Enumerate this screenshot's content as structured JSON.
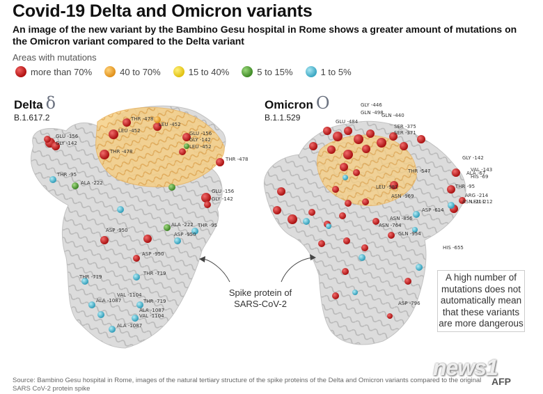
{
  "header": {
    "title": "Covid-19 Delta and Omicron variants",
    "subtitle": "An image of the new variant by the Bambino Gesu hospital in Rome shows a greater amount of mutations on the Omicron variant compared to the Delta variant"
  },
  "legend": {
    "title": "Areas with mutations",
    "items": [
      {
        "label": "more than 70%",
        "color": "#c81e1e"
      },
      {
        "label": "40 to 70%",
        "color": "#f0a81e"
      },
      {
        "label": "15 to 40%",
        "color": "#f2d21c"
      },
      {
        "label": "5 to 15%",
        "color": "#5aa83c"
      },
      {
        "label": "1 to 5%",
        "color": "#5bc0d8"
      }
    ]
  },
  "delta": {
    "name": "Delta",
    "symbol": "δ",
    "lineage": "B.1.617.2",
    "residues": [
      "THR -478",
      "LEU -452",
      "LEU -452",
      "GLU -156",
      "GLY -142",
      "GLU -156",
      "GLY -142",
      "LEU -452",
      "THR -478",
      "THR -478",
      "THR -95",
      "ALA -222",
      "GLU -156",
      "GLY -142",
      "ASP -950",
      "ALA -222",
      "THR -95",
      "ASP -950",
      "ASP -950",
      "THR -719",
      "THR -719",
      "VAL -1104",
      "ALA -1087",
      "THR -719",
      "ALA -1087",
      "VAL -1104",
      "ALA -1087"
    ]
  },
  "omicron": {
    "name": "Omicron",
    "symbol": "O",
    "lineage": "B.1.1.529",
    "residues": [
      "GLY -446",
      "GLN -498",
      "GLN -440",
      "GLU -484",
      "SER -375",
      "SER -371",
      "THR -547",
      "GLY -142",
      "VAL -143",
      "ALA -67",
      "HIS -69",
      "THR -95",
      "ARG -214",
      "ASN -211",
      "LEU -212",
      "ASN -969",
      "ASP -614",
      "ASN -856",
      "ASN -764",
      "GLN -954",
      "HIS -655",
      "ASP -796",
      "LEU -981"
    ]
  },
  "annotations": {
    "spike_label": "Spike protein of SARS-CoV-2",
    "note": "A high number of mutations does not automatically mean that these variants are more dangerous"
  },
  "footer": {
    "source": "Source: Bambino Gesu hospital in Rome, images of the natural tertiary structure of the spike proteins of the Delta and Omicron variants compared to the original SARS CoV-2 protein spike",
    "watermark": "news1",
    "agency": "AFP"
  },
  "colors": {
    "red": "#c81e1e",
    "orange": "#f0a81e",
    "yellow": "#f2d21c",
    "green": "#5aa83c",
    "cyan": "#5bc0d8",
    "protein_grey": "#d4d4d4",
    "protein_orange": "#f3c77a"
  }
}
